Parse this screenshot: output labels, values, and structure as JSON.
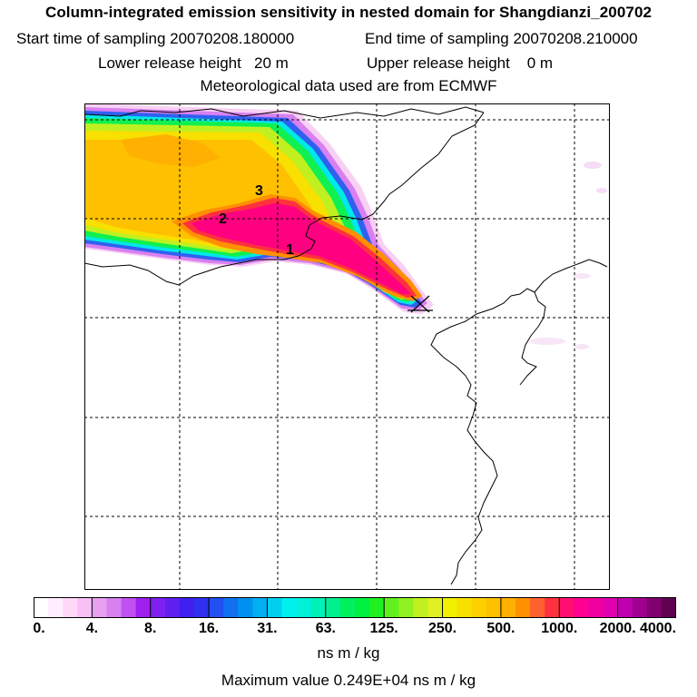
{
  "header": {
    "title": "Column-integrated emission sensitivity in nested domain for Shangdianzi_200702",
    "start_label": "Start time of sampling 20070208.180000",
    "end_label": "End time of sampling 20070208.210000",
    "lower_label": "Lower release height   20 m",
    "upper_label": "Upper release height    0 m",
    "met_label": "Meteorological data used are from ECMWF"
  },
  "map": {
    "markers": [
      "1",
      "2",
      "3"
    ],
    "receptor_icon": "x-cross-icon"
  },
  "colorbar": {
    "ticks": [
      "0.",
      "4.",
      "8.",
      "16.",
      "31.",
      "63.",
      "125.",
      "250.",
      "500.",
      "1000.",
      "2000.",
      "4000."
    ],
    "colors": [
      "#ffffff",
      "#ffeeff",
      "#ffd8f8",
      "#f8c0f4",
      "#e8a0f0",
      "#d880f0",
      "#c050f0",
      "#a020f0",
      "#8020f0",
      "#6020f0",
      "#4020f0",
      "#3030f0",
      "#2050f0",
      "#1070f0",
      "#0090f0",
      "#00b0f0",
      "#00d0f0",
      "#00f0f0",
      "#00f0d8",
      "#00f0b8",
      "#00f090",
      "#00f060",
      "#00f040",
      "#20f020",
      "#60f020",
      "#90f020",
      "#c0f020",
      "#e0f020",
      "#f0f000",
      "#f8e000",
      "#ffd000",
      "#ffc000",
      "#ffb000",
      "#ff9000",
      "#ff6030",
      "#ff3040",
      "#ff1070",
      "#ff0090",
      "#f000a0",
      "#e000b0",
      "#c000b0",
      "#a00090",
      "#800070",
      "#600050"
    ],
    "units": "ns m / kg"
  },
  "footer": {
    "max_value": "Maximum value  0.249E+04 ns m / kg"
  }
}
